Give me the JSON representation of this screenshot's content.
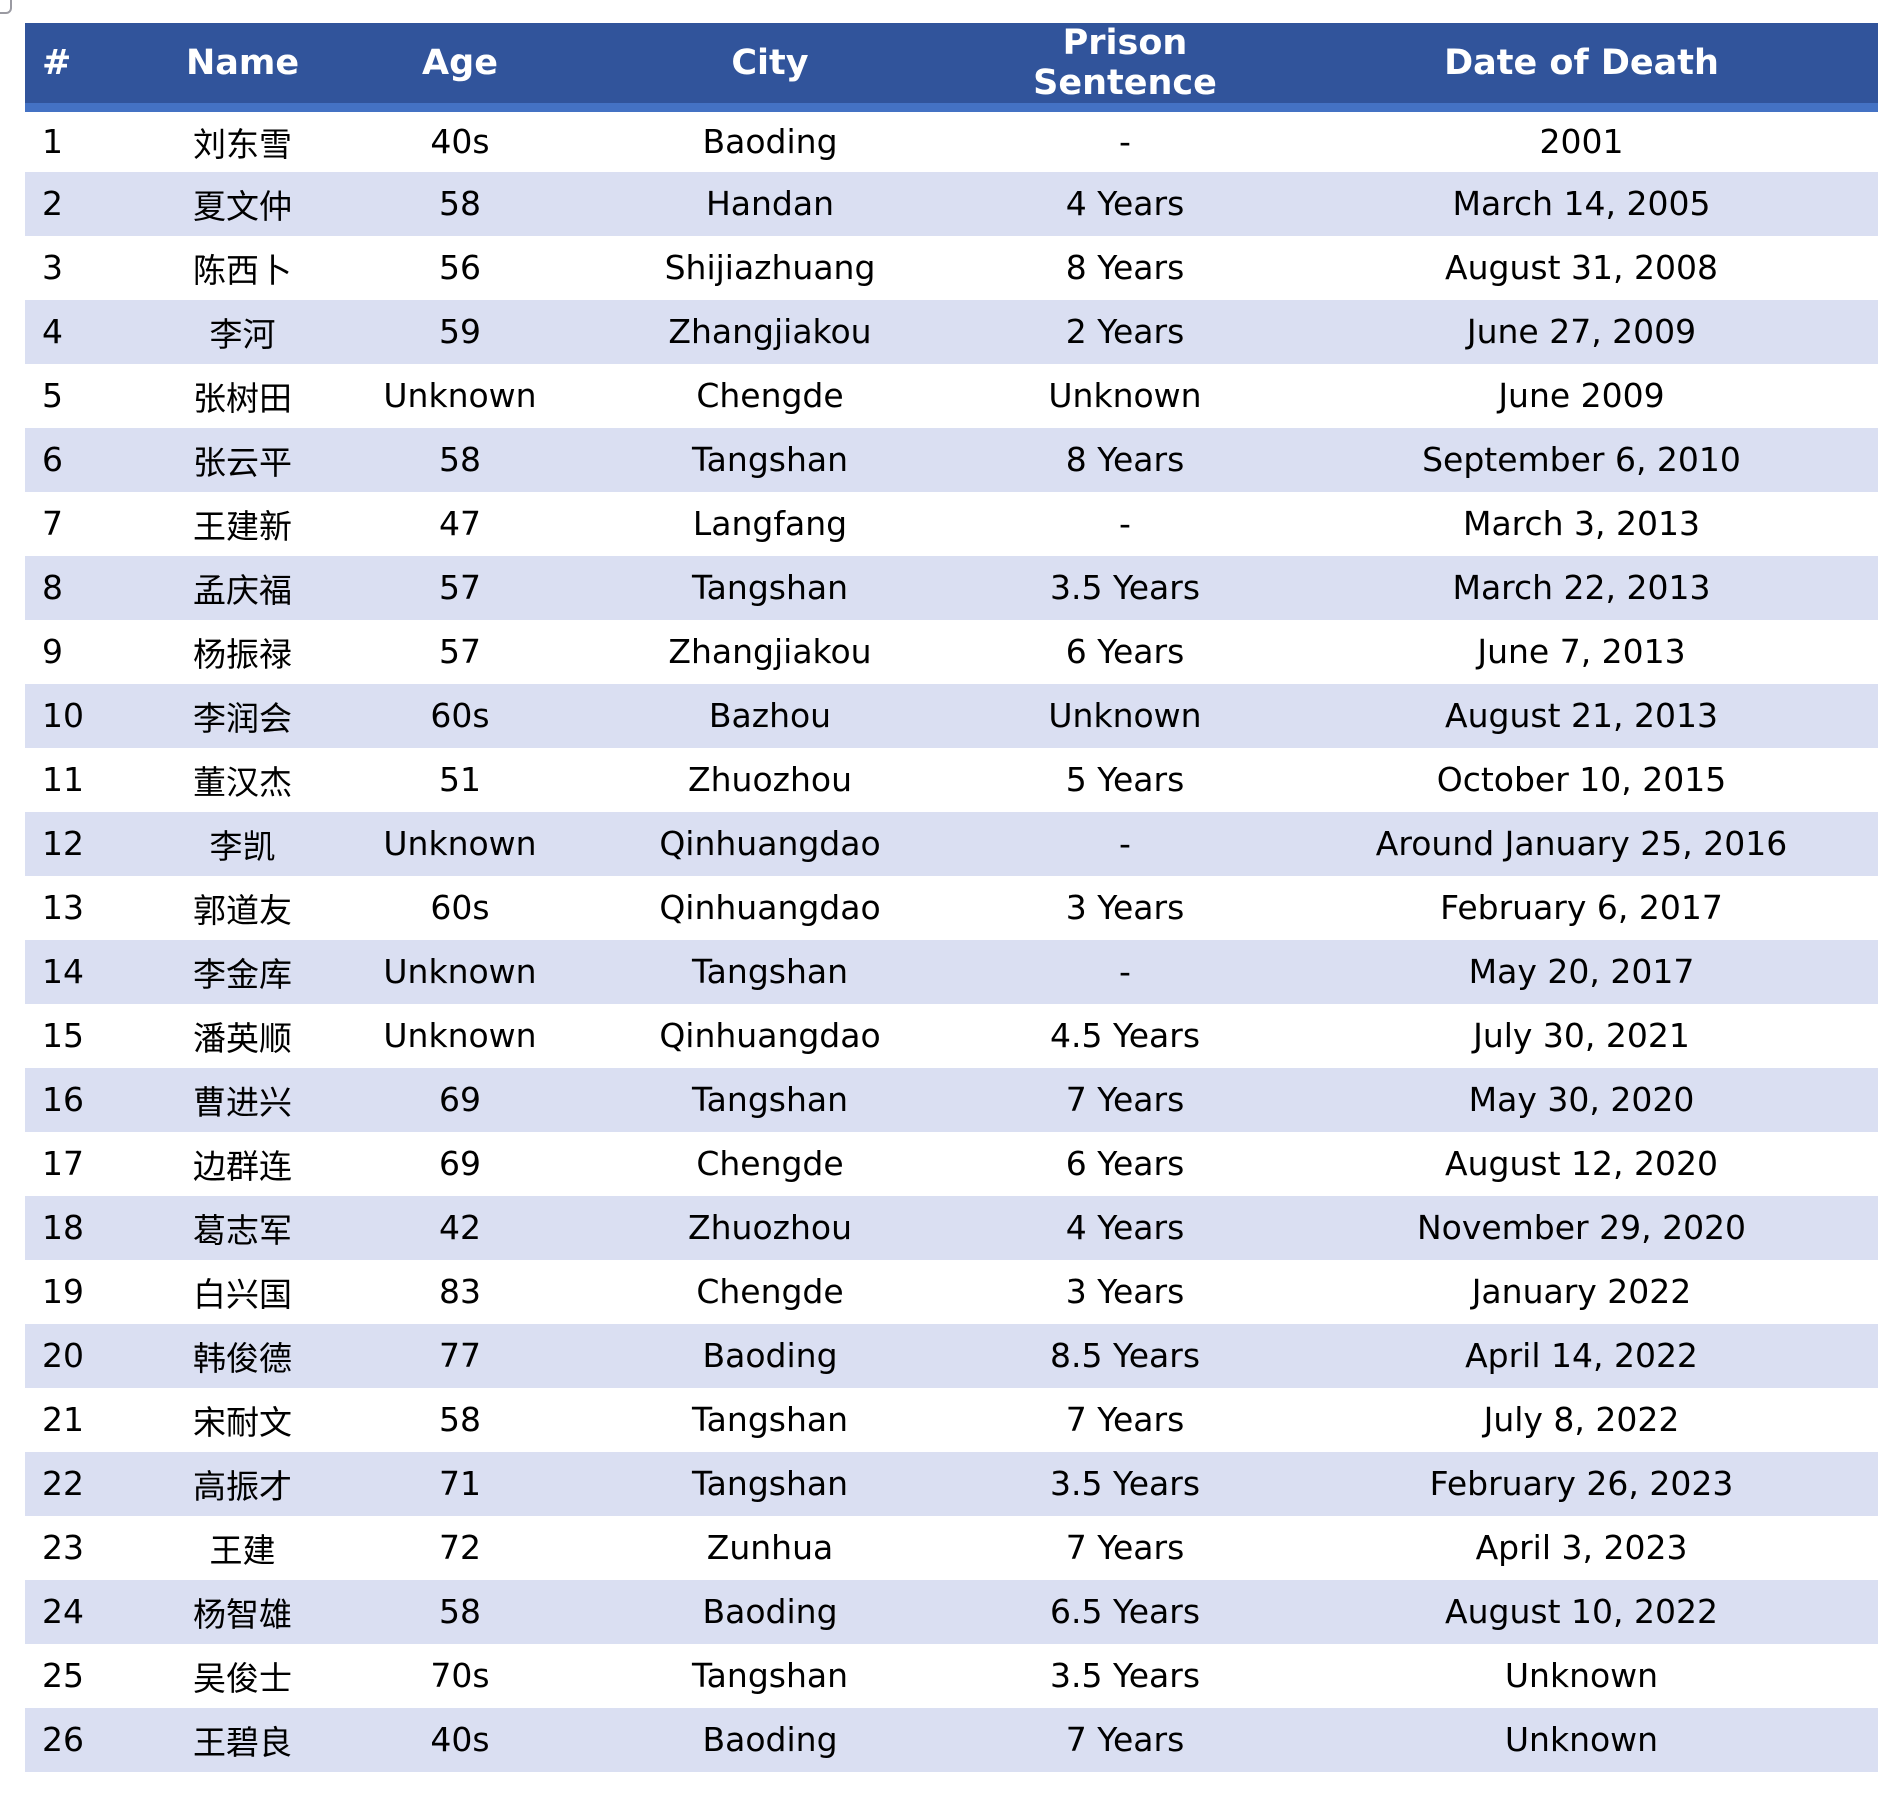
{
  "chart_data": {
    "type": "table",
    "columns": [
      "#",
      "Name",
      "Age",
      "City",
      "Prison Sentence",
      "Date of Death"
    ],
    "rows": [
      [
        "1",
        "刘东雪",
        "40s",
        "Baoding",
        "-",
        "2001"
      ],
      [
        "2",
        "夏文仲",
        "58",
        "Handan",
        "4 Years",
        "March 14, 2005"
      ],
      [
        "3",
        "陈西卜",
        "56",
        "Shijiazhuang",
        "8 Years",
        "August 31, 2008"
      ],
      [
        "4",
        "李河",
        "59",
        "Zhangjiakou",
        "2 Years",
        "June 27, 2009"
      ],
      [
        "5",
        "张树田",
        "Unknown",
        "Chengde",
        "Unknown",
        "June 2009"
      ],
      [
        "6",
        "张云平",
        "58",
        "Tangshan",
        "8 Years",
        "September 6, 2010"
      ],
      [
        "7",
        "王建新",
        "47",
        "Langfang",
        "-",
        "March 3, 2013"
      ],
      [
        "8",
        "孟庆福",
        "57",
        "Tangshan",
        "3.5 Years",
        "March 22, 2013"
      ],
      [
        "9",
        "杨振禄",
        "57",
        "Zhangjiakou",
        "6 Years",
        "June 7, 2013"
      ],
      [
        "10",
        "李润会",
        "60s",
        "Bazhou",
        "Unknown",
        "August 21, 2013"
      ],
      [
        "11",
        "董汉杰",
        "51",
        "Zhuozhou",
        "5 Years",
        "October 10, 2015"
      ],
      [
        "12",
        "李凯",
        "Unknown",
        "Qinhuangdao",
        "-",
        "Around January 25, 2016"
      ],
      [
        "13",
        "郭道友",
        "60s",
        "Qinhuangdao",
        "3 Years",
        "February 6, 2017"
      ],
      [
        "14",
        "李金库",
        "Unknown",
        "Tangshan",
        "-",
        "May 20, 2017"
      ],
      [
        "15",
        "潘英顺",
        "Unknown",
        "Qinhuangdao",
        "4.5 Years",
        "July 30, 2021"
      ],
      [
        "16",
        "曹进兴",
        "69",
        "Tangshan",
        "7 Years",
        "May 30, 2020"
      ],
      [
        "17",
        "边群连",
        "69",
        "Chengde",
        "6 Years",
        "August 12, 2020"
      ],
      [
        "18",
        "葛志军",
        "42",
        "Zhuozhou",
        "4 Years",
        "November 29, 2020"
      ],
      [
        "19",
        "白兴国",
        "83",
        "Chengde",
        "3 Years",
        "January 2022"
      ],
      [
        "20",
        "韩俊德",
        "77",
        "Baoding",
        "8.5 Years",
        "April 14, 2022"
      ],
      [
        "21",
        "宋耐文",
        "58",
        "Tangshan",
        "7 Years",
        "July 8, 2022"
      ],
      [
        "22",
        "高振才",
        "71",
        "Tangshan",
        "3.5 Years",
        "February 26, 2023"
      ],
      [
        "23",
        "王建",
        "72",
        "Zunhua",
        "7 Years",
        "April 3, 2023"
      ],
      [
        "24",
        "杨智雄",
        "58",
        "Baoding",
        "6.5 Years",
        "August 10, 2022"
      ],
      [
        "25",
        "吴俊士",
        "70s",
        "Tangshan",
        "3.5 Years",
        "Unknown"
      ],
      [
        "26",
        "王碧良",
        "40s",
        "Baoding",
        "7 Years",
        "Unknown"
      ]
    ]
  },
  "colors": {
    "header_bg": "#31549B",
    "header_accent": "#4472C4",
    "band_row": "#DADFF2",
    "row_white": "#FFFFFF",
    "header_text": "#FFFFFF",
    "body_text": "#000000"
  }
}
